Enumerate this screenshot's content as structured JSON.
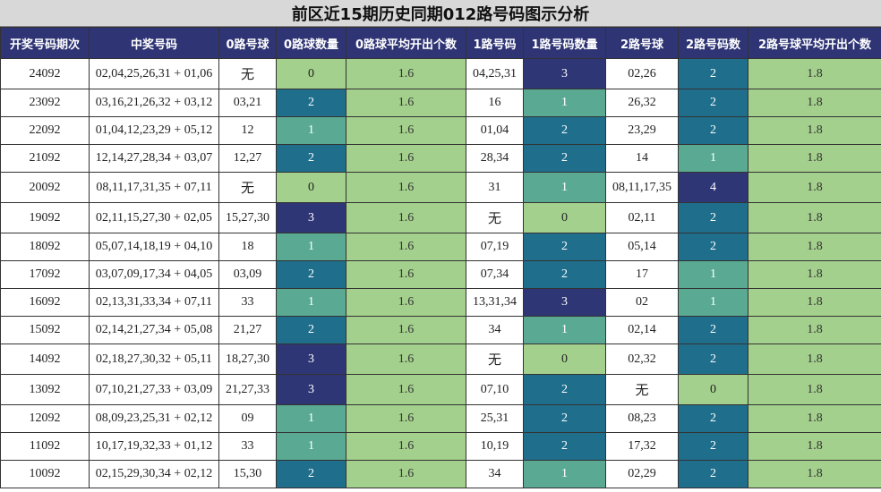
{
  "title": "前区近15期历史同期012路号码图示分析",
  "columns": [
    "开奖号码期次",
    "中奖号码",
    "0路号球",
    "0路球数量",
    "0路球平均开出个数",
    "1路号码",
    "1路号码数量",
    "2路号球",
    "2路号码数",
    "2路号球平均开出个数"
  ],
  "count_colors": {
    "0": "#a3d08c",
    "1": "#5aaa93",
    "2": "#1f6e8c",
    "3": "#2f3675",
    "4": "#2f3675"
  },
  "chart_data": {
    "type": "table",
    "title": "前区近15期历史同期012路号码图示分析",
    "rows": [
      {
        "issue": "24092",
        "numbers": "02,04,25,26,31 + 01,06",
        "r0": "无",
        "r0_count": 0,
        "r0_avg": "1.6",
        "r1": "04,25,31",
        "r1_count": 3,
        "r2": "02,26",
        "r2_count": 2,
        "r2_avg": "1.8"
      },
      {
        "issue": "23092",
        "numbers": "03,16,21,26,32 + 03,12",
        "r0": "03,21",
        "r0_count": 2,
        "r0_avg": "1.6",
        "r1": "16",
        "r1_count": 1,
        "r2": "26,32",
        "r2_count": 2,
        "r2_avg": "1.8"
      },
      {
        "issue": "22092",
        "numbers": "01,04,12,23,29 + 05,12",
        "r0": "12",
        "r0_count": 1,
        "r0_avg": "1.6",
        "r1": "01,04",
        "r1_count": 2,
        "r2": "23,29",
        "r2_count": 2,
        "r2_avg": "1.8"
      },
      {
        "issue": "21092",
        "numbers": "12,14,27,28,34 + 03,07",
        "r0": "12,27",
        "r0_count": 2,
        "r0_avg": "1.6",
        "r1": "28,34",
        "r1_count": 2,
        "r2": "14",
        "r2_count": 1,
        "r2_avg": "1.8"
      },
      {
        "issue": "20092",
        "numbers": "08,11,17,31,35 + 07,11",
        "r0": "无",
        "r0_count": 0,
        "r0_avg": "1.6",
        "r1": "31",
        "r1_count": 1,
        "r2": "08,11,17,35",
        "r2_count": 4,
        "r2_avg": "1.8"
      },
      {
        "issue": "19092",
        "numbers": "02,11,15,27,30 + 02,05",
        "r0": "15,27,30",
        "r0_count": 3,
        "r0_avg": "1.6",
        "r1": "无",
        "r1_count": 0,
        "r2": "02,11",
        "r2_count": 2,
        "r2_avg": "1.8"
      },
      {
        "issue": "18092",
        "numbers": "05,07,14,18,19 + 04,10",
        "r0": "18",
        "r0_count": 1,
        "r0_avg": "1.6",
        "r1": "07,19",
        "r1_count": 2,
        "r2": "05,14",
        "r2_count": 2,
        "r2_avg": "1.8"
      },
      {
        "issue": "17092",
        "numbers": "03,07,09,17,34 + 04,05",
        "r0": "03,09",
        "r0_count": 2,
        "r0_avg": "1.6",
        "r1": "07,34",
        "r1_count": 2,
        "r2": "17",
        "r2_count": 1,
        "r2_avg": "1.8"
      },
      {
        "issue": "16092",
        "numbers": "02,13,31,33,34 + 07,11",
        "r0": "33",
        "r0_count": 1,
        "r0_avg": "1.6",
        "r1": "13,31,34",
        "r1_count": 3,
        "r2": "02",
        "r2_count": 1,
        "r2_avg": "1.8"
      },
      {
        "issue": "15092",
        "numbers": "02,14,21,27,34 + 05,08",
        "r0": "21,27",
        "r0_count": 2,
        "r0_avg": "1.6",
        "r1": "34",
        "r1_count": 1,
        "r2": "02,14",
        "r2_count": 2,
        "r2_avg": "1.8"
      },
      {
        "issue": "14092",
        "numbers": "02,18,27,30,32 + 05,11",
        "r0": "18,27,30",
        "r0_count": 3,
        "r0_avg": "1.6",
        "r1": "无",
        "r1_count": 0,
        "r2": "02,32",
        "r2_count": 2,
        "r2_avg": "1.8"
      },
      {
        "issue": "13092",
        "numbers": "07,10,21,27,33 + 03,09",
        "r0": "21,27,33",
        "r0_count": 3,
        "r0_avg": "1.6",
        "r1": "07,10",
        "r1_count": 2,
        "r2": "无",
        "r2_count": 0,
        "r2_avg": "1.8"
      },
      {
        "issue": "12092",
        "numbers": "08,09,23,25,31 + 02,12",
        "r0": "09",
        "r0_count": 1,
        "r0_avg": "1.6",
        "r1": "25,31",
        "r1_count": 2,
        "r2": "08,23",
        "r2_count": 2,
        "r2_avg": "1.8"
      },
      {
        "issue": "11092",
        "numbers": "10,17,19,32,33 + 01,12",
        "r0": "33",
        "r0_count": 1,
        "r0_avg": "1.6",
        "r1": "10,19",
        "r1_count": 2,
        "r2": "17,32",
        "r2_count": 2,
        "r2_avg": "1.8"
      },
      {
        "issue": "10092",
        "numbers": "02,15,29,30,34 + 02,12",
        "r0": "15,30",
        "r0_count": 2,
        "r0_avg": "1.6",
        "r1": "34",
        "r1_count": 1,
        "r2": "02,29",
        "r2_count": 2,
        "r2_avg": "1.8"
      }
    ]
  }
}
